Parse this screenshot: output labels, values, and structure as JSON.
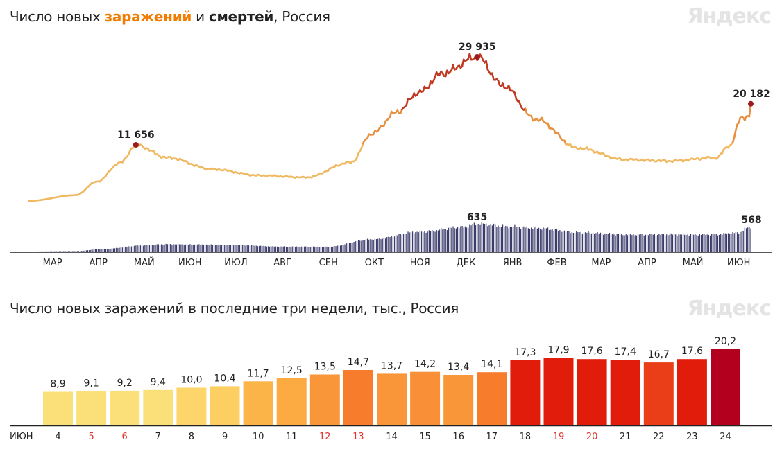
{
  "header1": {
    "part1": "Число новых ",
    "accent_orange": "заражений",
    "part2": " и ",
    "accent_dark": "смертей",
    "part3": ", Россия"
  },
  "header2": {
    "title": "Число новых заражений в последние три недели, тыс., Россия"
  },
  "logo": "Яндекс",
  "colors": {
    "line_low": "#f0b860",
    "line_mid": "#e89040",
    "line_high": "#c03a22",
    "deaths": "#3c3c6c",
    "marker": "#9b1b22",
    "weekend": "#e0342b"
  },
  "chart_data": [
    {
      "type": "line",
      "title": "Число новых заражений и смертей, Россия",
      "x_tick_labels": [
        "МАР",
        "АПР",
        "МАЙ",
        "ИЮН",
        "ИЮЛ",
        "АВГ",
        "СЕН",
        "ОКТ",
        "НОЯ",
        "ДЕК",
        "ЯНВ",
        "ФЕВ",
        "МАР",
        "АПР",
        "МАЙ",
        "ИЮН"
      ],
      "series": [
        {
          "name": "заражений",
          "keypoints": [
            [
              "2020-03-01",
              20
            ],
            [
              "2020-04-01",
              1200
            ],
            [
              "2020-04-15",
              4000
            ],
            [
              "2020-05-01",
              8000
            ],
            [
              "2020-05-11",
              11656
            ],
            [
              "2020-06-01",
              9000
            ],
            [
              "2020-07-01",
              6600
            ],
            [
              "2020-08-01",
              5300
            ],
            [
              "2020-09-01",
              4900
            ],
            [
              "2020-10-01",
              8000
            ],
            [
              "2020-10-15",
              14000
            ],
            [
              "2020-11-01",
              18500
            ],
            [
              "2020-11-15",
              22500
            ],
            [
              "2020-12-01",
              26500
            ],
            [
              "2020-12-24",
              29935
            ],
            [
              "2021-01-10",
              24000
            ],
            [
              "2021-02-01",
              17000
            ],
            [
              "2021-03-01",
              11000
            ],
            [
              "2021-04-01",
              8600
            ],
            [
              "2021-05-01",
              8300
            ],
            [
              "2021-06-01",
              9000
            ],
            [
              "2021-06-10",
              11500
            ],
            [
              "2021-06-18",
              17300
            ],
            [
              "2021-06-23",
              17600
            ],
            [
              "2021-06-24",
              20182
            ]
          ],
          "annotations": [
            {
              "date": "2020-05-11",
              "value": 11656,
              "label": "11 656"
            },
            {
              "date": "2020-12-24",
              "value": 29935,
              "label": "29 935"
            },
            {
              "date": "2021-06-24",
              "value": 20182,
              "label": "20 182"
            }
          ]
        },
        {
          "name": "смертей",
          "type": "bar",
          "keypoints": [
            [
              "2020-03-01",
              0
            ],
            [
              "2020-04-01",
              10
            ],
            [
              "2020-04-20",
              60
            ],
            [
              "2020-05-15",
              140
            ],
            [
              "2020-06-01",
              170
            ],
            [
              "2020-06-20",
              160
            ],
            [
              "2020-07-15",
              150
            ],
            [
              "2020-08-15",
              115
            ],
            [
              "2020-09-15",
              110
            ],
            [
              "2020-10-15",
              280
            ],
            [
              "2020-11-15",
              450
            ],
            [
              "2020-12-15",
              560
            ],
            [
              "2020-12-24",
              635
            ],
            [
              "2021-01-15",
              570
            ],
            [
              "2021-02-01",
              540
            ],
            [
              "2021-03-01",
              440
            ],
            [
              "2021-04-01",
              390
            ],
            [
              "2021-05-01",
              390
            ],
            [
              "2021-06-01",
              390
            ],
            [
              "2021-06-15",
              430
            ],
            [
              "2021-06-24",
              568
            ]
          ],
          "annotations": [
            {
              "date": "2020-12-24",
              "value": 635,
              "label": "635"
            },
            {
              "date": "2021-06-24",
              "value": 568,
              "label": "568"
            }
          ]
        }
      ]
    },
    {
      "type": "bar",
      "title": "Число новых заражений в последние три недели, тыс., Россия",
      "month_label": "ИЮН",
      "categories": [
        "4",
        "5",
        "6",
        "7",
        "8",
        "9",
        "10",
        "11",
        "12",
        "13",
        "14",
        "15",
        "16",
        "17",
        "18",
        "19",
        "20",
        "21",
        "22",
        "23",
        "24"
      ],
      "values": [
        8.9,
        9.1,
        9.2,
        9.4,
        10.0,
        10.4,
        11.7,
        12.5,
        13.5,
        14.7,
        13.7,
        14.2,
        13.4,
        14.1,
        17.3,
        17.9,
        17.6,
        17.4,
        16.7,
        17.6,
        20.2
      ],
      "value_labels": [
        "8,9",
        "9,1",
        "9,2",
        "9,4",
        "10,0",
        "10,4",
        "11,7",
        "12,5",
        "13,5",
        "14,7",
        "13,7",
        "14,2",
        "13,4",
        "14,1",
        "17,3",
        "17,9",
        "17,6",
        "17,4",
        "16,7",
        "17,6",
        "20,2"
      ],
      "weekend_days": [
        "5",
        "6",
        "12",
        "13",
        "19",
        "20"
      ],
      "bar_colors": [
        "#fbe07a",
        "#fbe07a",
        "#fbe07a",
        "#fbe07a",
        "#fdd56a",
        "#fdcf62",
        "#fbb447",
        "#fbab42",
        "#f9963a",
        "#f77c2c",
        "#f9963a",
        "#f98f36",
        "#f9963a",
        "#f77c2c",
        "#e21c0a",
        "#e21c0a",
        "#e21c0a",
        "#e21c0a",
        "#ea3e18",
        "#e21c0a",
        "#b3001e"
      ]
    }
  ]
}
